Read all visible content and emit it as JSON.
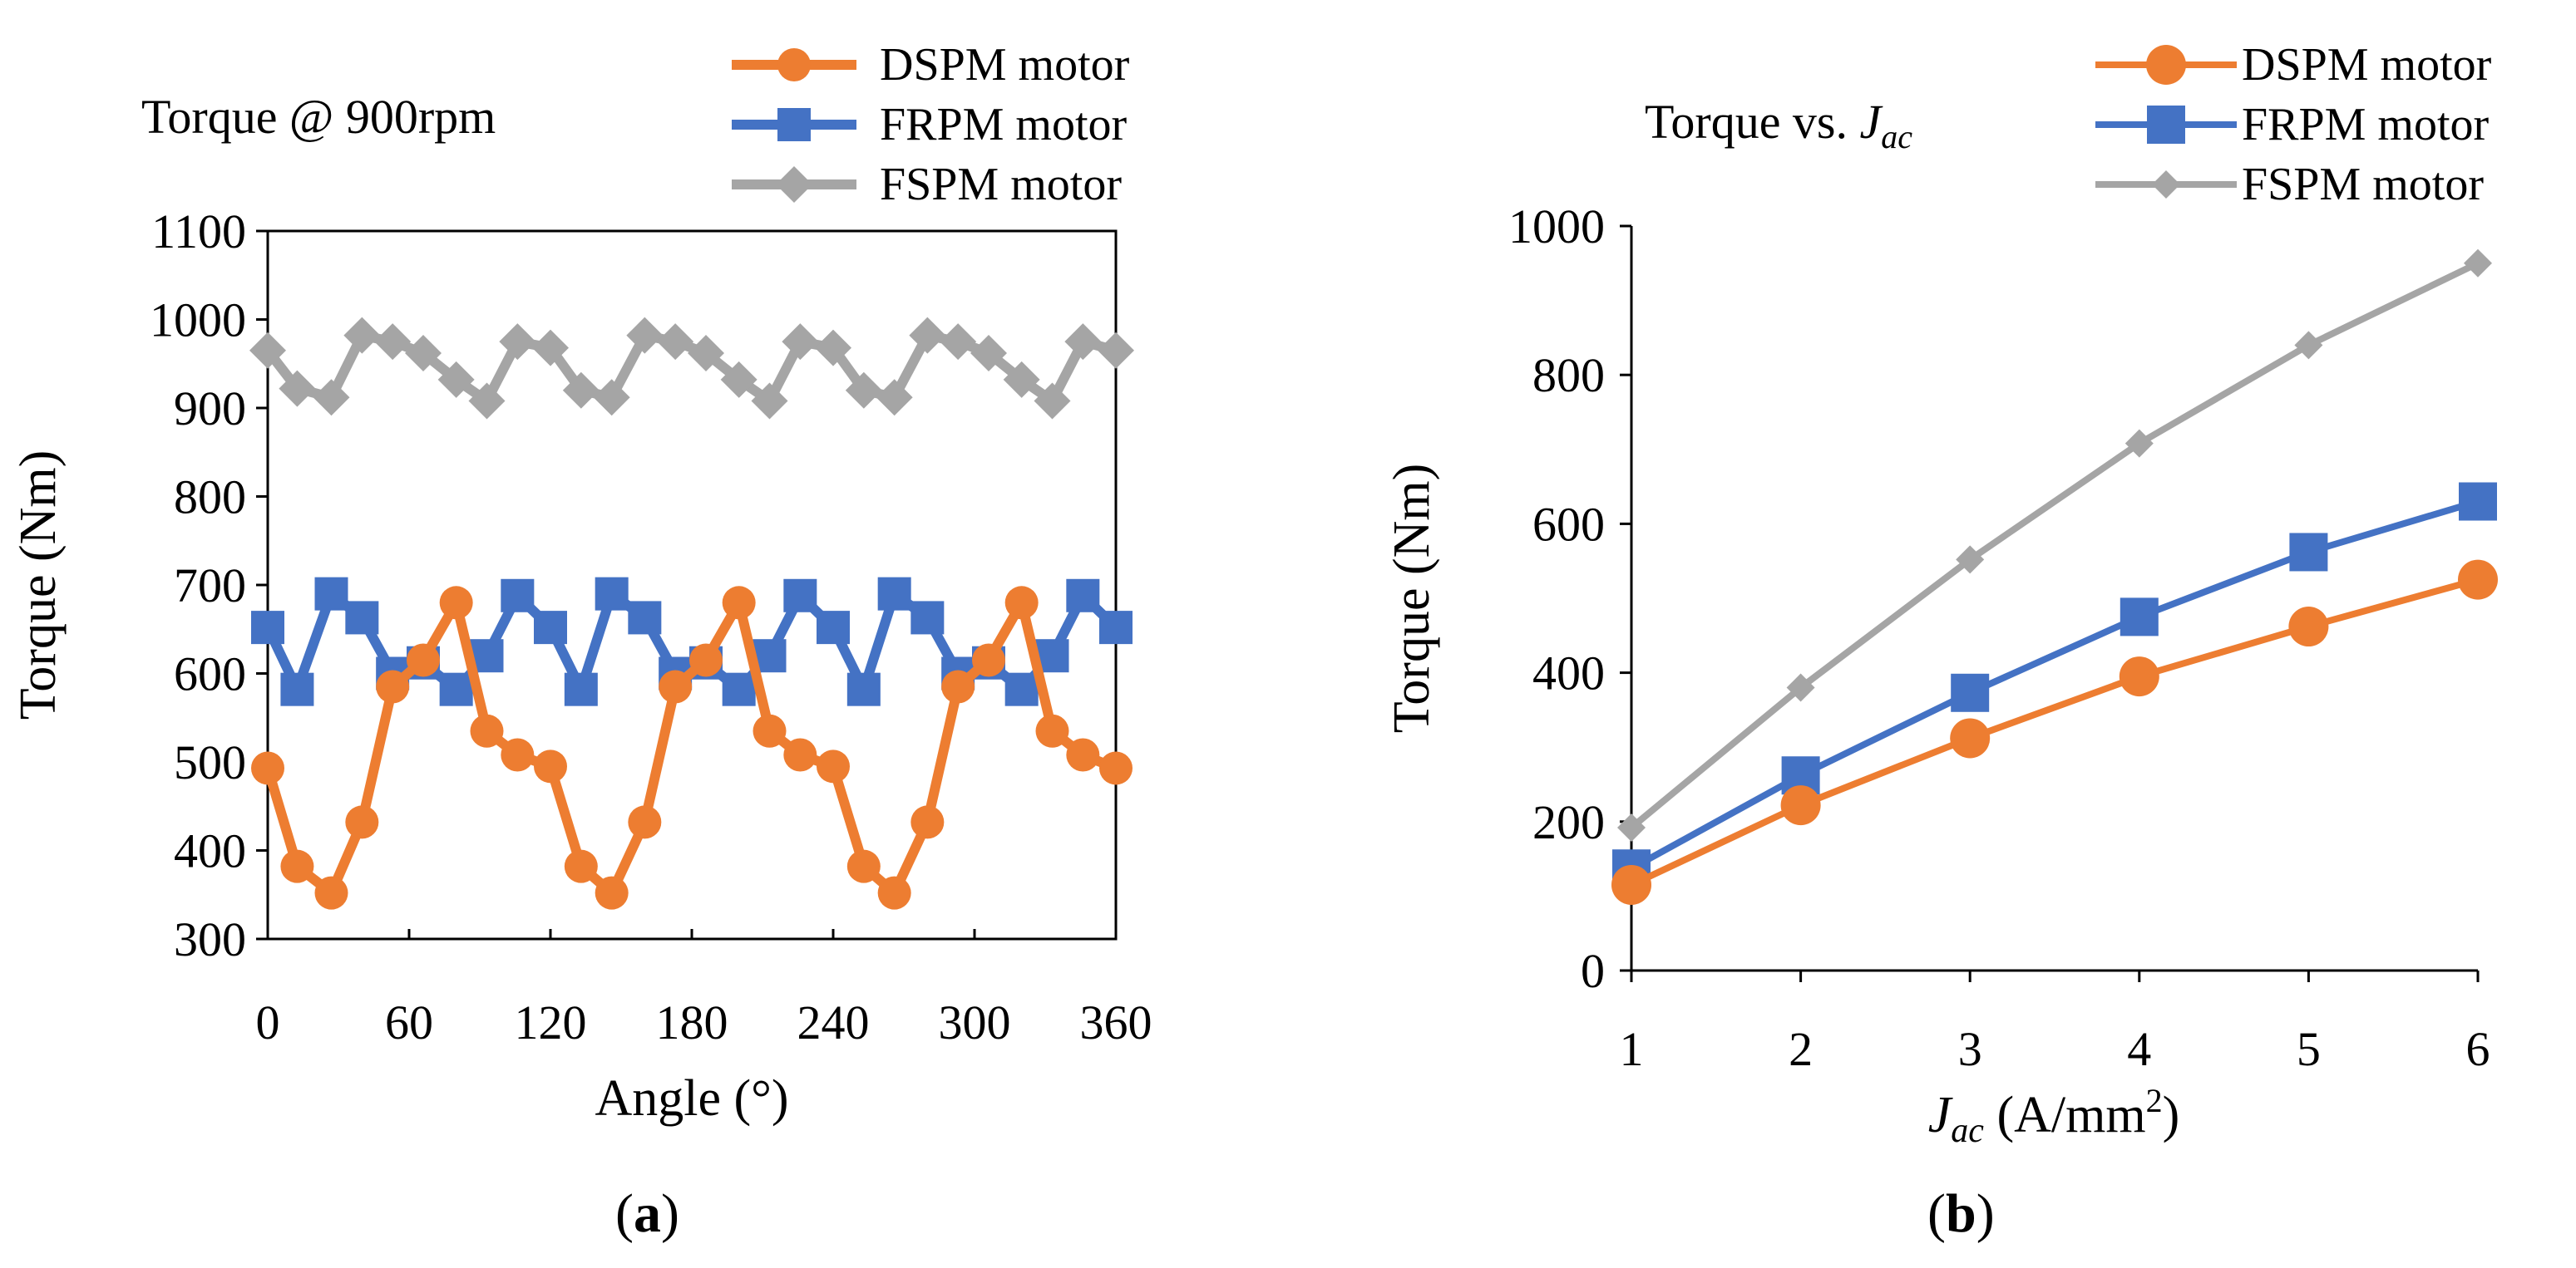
{
  "chart_data": [
    {
      "type": "line",
      "panel": "a",
      "panel_label": "(a)",
      "title": "Torque @ 900rpm",
      "xlabel": "Angle (°)",
      "ylabel": "Torque (Nm)",
      "xlim": [
        0,
        360
      ],
      "ylim": [
        300,
        1100
      ],
      "xticks": [
        0,
        60,
        120,
        180,
        240,
        300,
        360
      ],
      "yticks": [
        300,
        400,
        500,
        600,
        700,
        800,
        900,
        1000,
        1100
      ],
      "grid": false,
      "legend_position": "top-right",
      "x": [
        0,
        12.5,
        27,
        40,
        53,
        66,
        80,
        93,
        106,
        120,
        133,
        146,
        160,
        173,
        186,
        200,
        213,
        226,
        240,
        253,
        266,
        280,
        293,
        306,
        320,
        333,
        346,
        360
      ],
      "series": [
        {
          "name": "DSPM motor",
          "color": "#ED7D31",
          "marker": "circle",
          "values": [
            493,
            382,
            352,
            432,
            585,
            615,
            680,
            535,
            508,
            495,
            382,
            352,
            432,
            585,
            615,
            680,
            535,
            508,
            495,
            382,
            352,
            432,
            585,
            615,
            680,
            535,
            508,
            493
          ]
        },
        {
          "name": "FRPM motor",
          "color": "#4472C4",
          "marker": "square",
          "values": [
            652,
            582,
            690,
            663,
            600,
            612,
            582,
            620,
            688,
            652,
            582,
            690,
            663,
            600,
            612,
            582,
            620,
            688,
            652,
            582,
            690,
            663,
            600,
            612,
            582,
            620,
            688,
            652
          ]
        },
        {
          "name": "FSPM motor",
          "color": "#A5A5A5",
          "marker": "diamond",
          "values": [
            965,
            922,
            912,
            982,
            975,
            962,
            932,
            908,
            975,
            968,
            920,
            912,
            982,
            975,
            962,
            932,
            908,
            975,
            968,
            920,
            912,
            982,
            975,
            962,
            932,
            908,
            975,
            965
          ]
        }
      ]
    },
    {
      "type": "line",
      "panel": "b",
      "panel_label": "(b)",
      "title_prefix": "Torque vs.",
      "title_symbol": "J",
      "title_symbol_sub": "ac",
      "xlabel_symbol": "J",
      "xlabel_symbol_sub": "ac",
      "xlabel_unit_prefix": "(A/mm",
      "xlabel_unit_sup": "2",
      "xlabel_unit_suffix": ")",
      "ylabel": "Torque (Nm)",
      "xlim": [
        1,
        6
      ],
      "ylim": [
        0,
        1000
      ],
      "xticks": [
        1,
        2,
        3,
        4,
        5,
        6
      ],
      "yticks": [
        0,
        200,
        400,
        600,
        800,
        1000
      ],
      "grid": false,
      "legend_position": "top-right",
      "x": [
        1,
        2,
        3,
        4,
        5,
        6
      ],
      "series": [
        {
          "name": "DSPM motor",
          "color": "#ED7D31",
          "marker": "circle",
          "values": [
            115,
            222,
            312,
            395,
            462,
            525
          ]
        },
        {
          "name": "FRPM motor",
          "color": "#4472C4",
          "marker": "square",
          "values": [
            137,
            262,
            373,
            475,
            562,
            630
          ]
        },
        {
          "name": "FSPM motor",
          "color": "#A5A5A5",
          "marker": "diamond",
          "values": [
            192,
            380,
            552,
            708,
            840,
            950
          ]
        }
      ]
    }
  ]
}
